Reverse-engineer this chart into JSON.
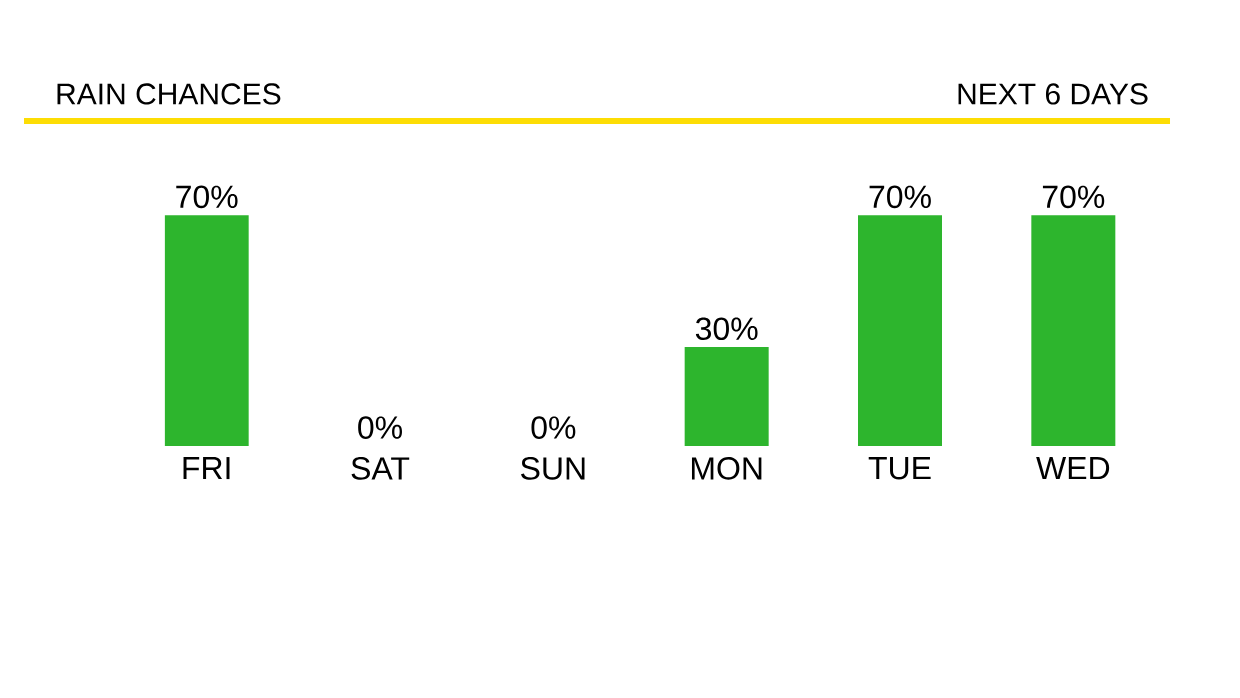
{
  "chart_data": {
    "type": "bar",
    "title": "RAIN CHANCES",
    "subtitle": "NEXT 6 DAYS",
    "categories": [
      "FRI",
      "SAT",
      "SUN",
      "MON",
      "TUE",
      "WED"
    ],
    "values": [
      70,
      0,
      0,
      30,
      70,
      70
    ],
    "color": "#2db52d",
    "value_labels": [
      "70%",
      "0%",
      "0%",
      "30%",
      "70%",
      "70%"
    ]
  }
}
